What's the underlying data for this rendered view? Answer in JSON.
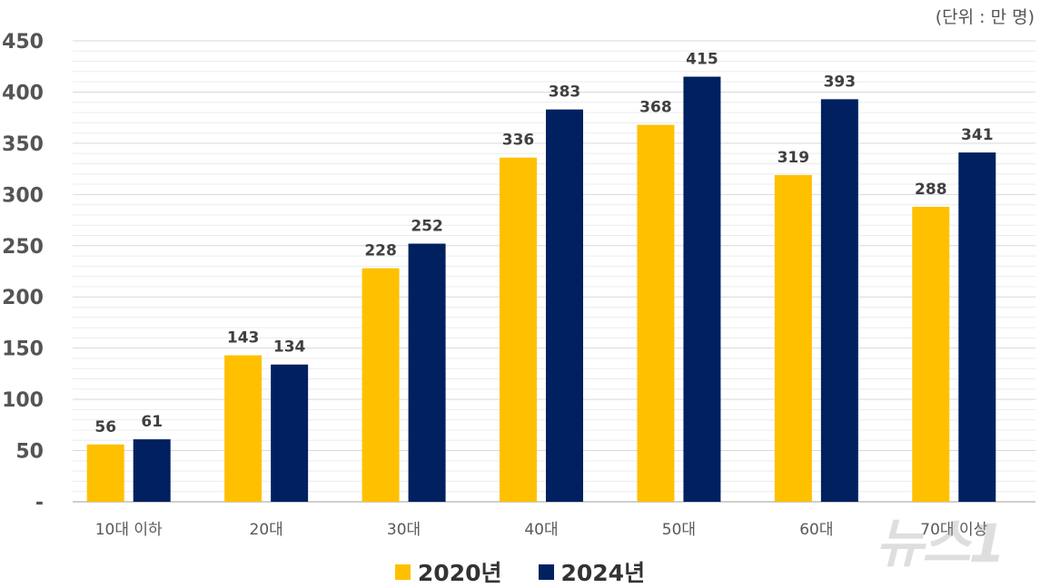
{
  "unit_note": "(단위 : 만 명)",
  "watermark": "뉴스1",
  "chart_data": {
    "type": "bar",
    "categories": [
      "10대 이하",
      "20대",
      "30대",
      "40대",
      "50대",
      "60대",
      "70대 이상"
    ],
    "series": [
      {
        "name": "2020년",
        "color": "#FFC000",
        "values": [
          56,
          143,
          228,
          336,
          368,
          319,
          288
        ]
      },
      {
        "name": "2024년",
        "color": "#002060",
        "values": [
          61,
          134,
          252,
          383,
          415,
          393,
          341
        ]
      }
    ],
    "yticks": [
      "-",
      "50",
      "100",
      "150",
      "200",
      "250",
      "300",
      "350",
      "400",
      "450"
    ],
    "ylim": [
      0,
      450
    ],
    "grid": true,
    "legend": "bottom",
    "data_labels": true
  }
}
